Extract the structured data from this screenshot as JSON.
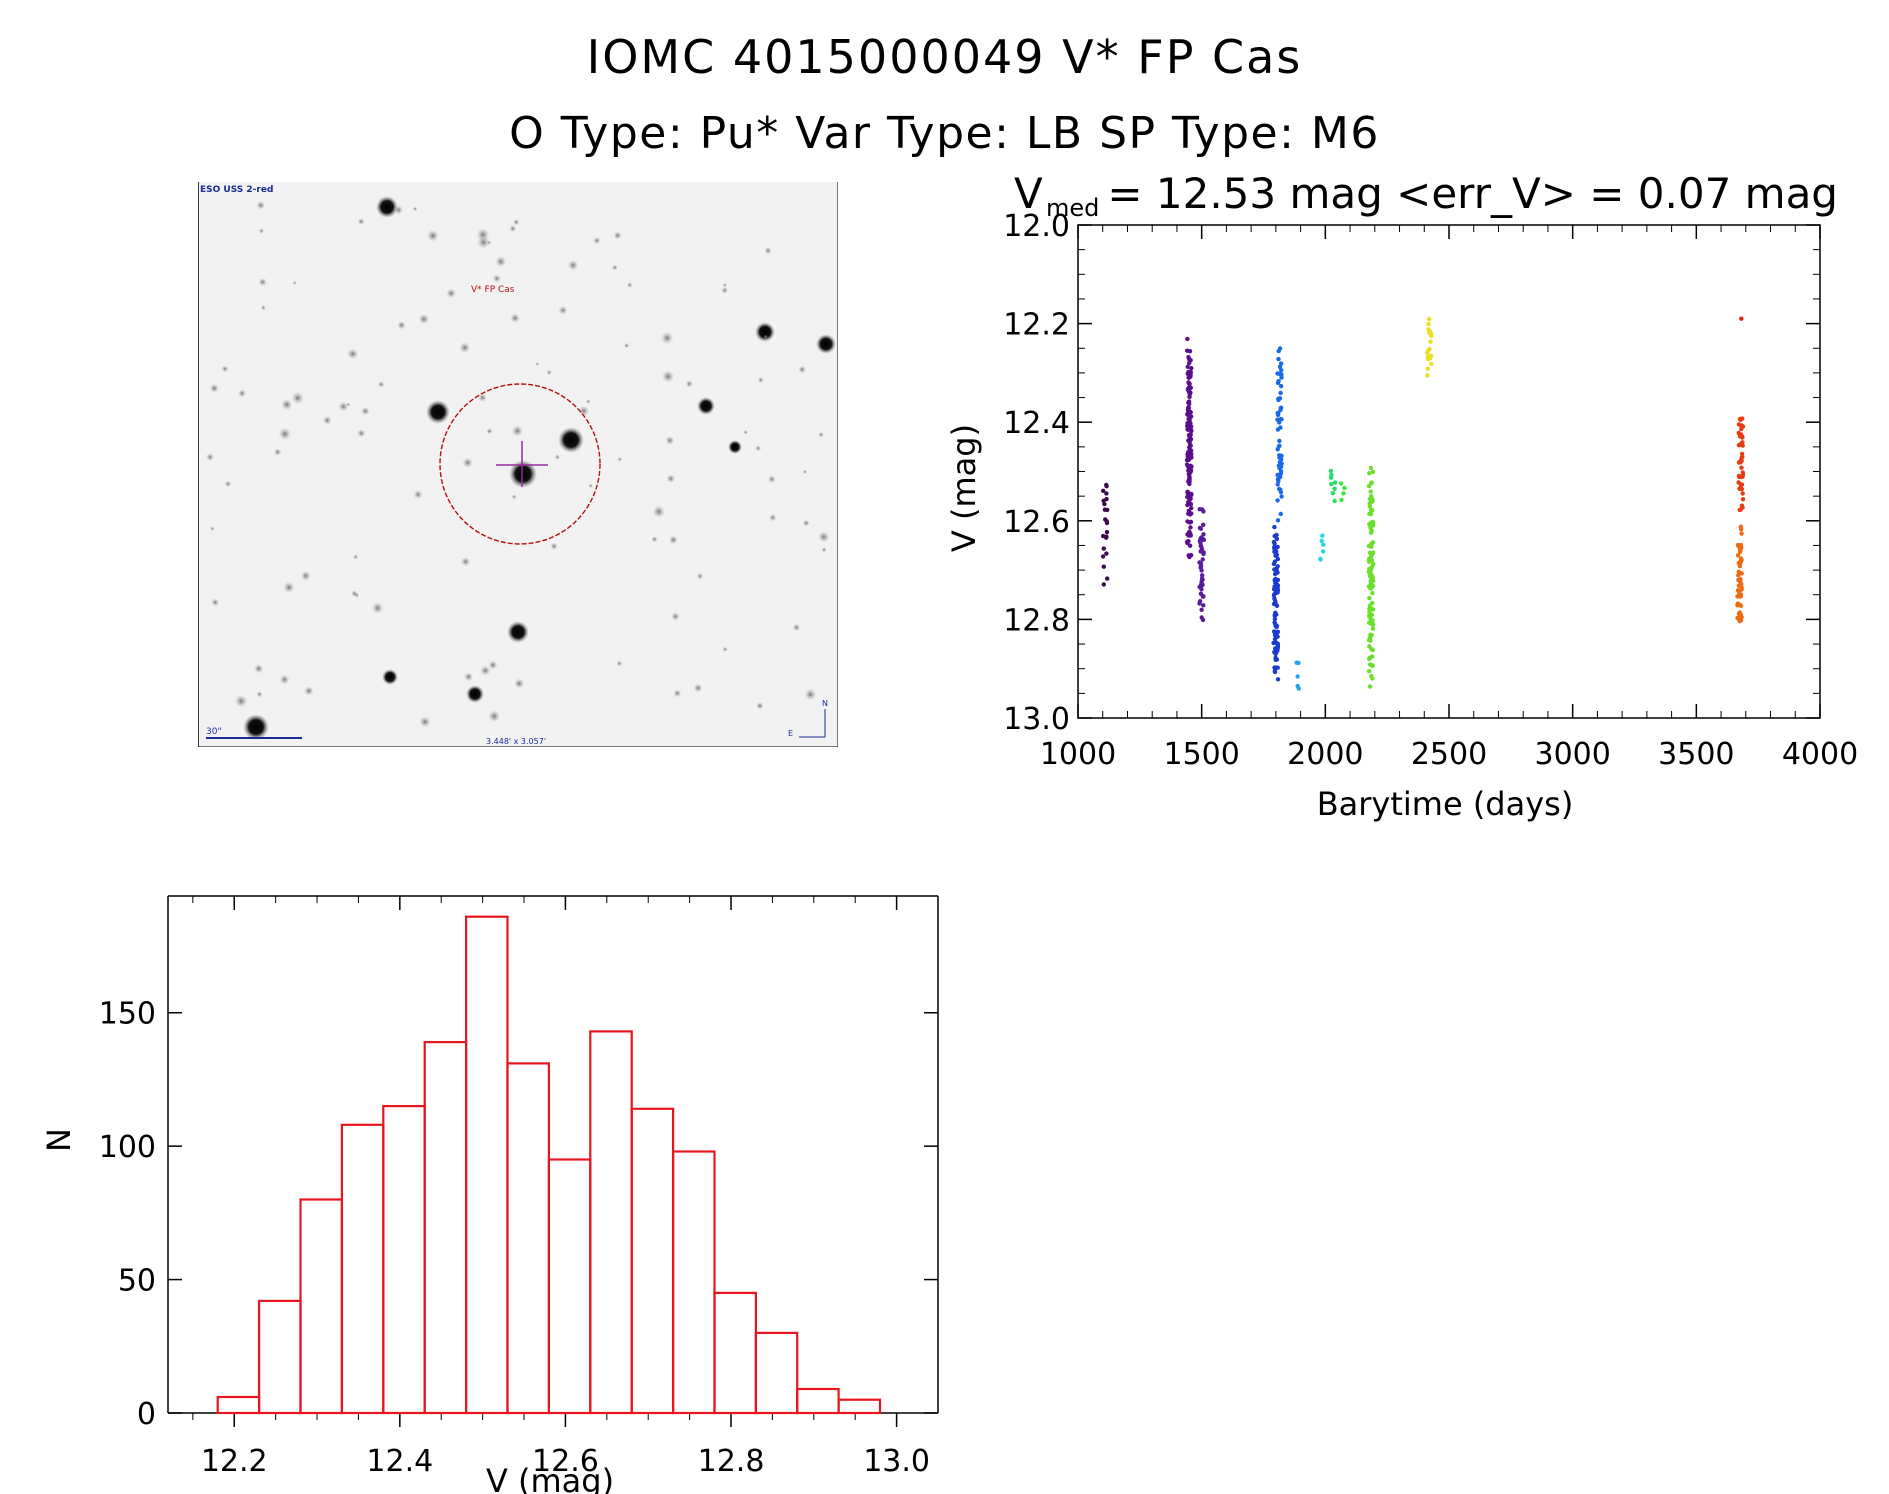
{
  "header": {
    "title": "IOMC 4015000049    V* FP Cas",
    "subtitle": "O Type: Pu*  Var Type: LB  SP Type: M6"
  },
  "image": {
    "survey_label": "ESO USS 2-red",
    "object_label": "V* FP Cas",
    "scale_label": "30\"",
    "size_label": "3.448' x 3.057'",
    "north_label": "N",
    "east_label": "E"
  },
  "chart_data": [
    {
      "type": "scatter",
      "title_prefix": "V",
      "title_subscript": "med",
      "title_rest": " = 12.53 mag <err_V> = 0.07 mag",
      "xlabel": "Barytime (days)",
      "ylabel": "V (mag)",
      "xlim": [
        1000,
        4000
      ],
      "ylim": [
        13.0,
        12.0
      ],
      "y_inverted": true,
      "xticks": [
        1000,
        1500,
        2000,
        2500,
        3000,
        3500,
        4000
      ],
      "yticks": [
        12.0,
        12.2,
        12.4,
        12.6,
        12.8,
        13.0
      ],
      "series": [
        {
          "color": "#3a0a4a",
          "x": 1110,
          "ymin": 12.47,
          "ymax": 12.74,
          "n": 22
        },
        {
          "color": "#5a0d8c",
          "x": 1450,
          "ymin": 12.22,
          "ymax": 12.69,
          "n": 140
        },
        {
          "color": "#5a1aa0",
          "x": 1500,
          "ymin": 12.55,
          "ymax": 12.82,
          "n": 45
        },
        {
          "color": "#1a3ad0",
          "x": 1800,
          "ymin": 12.6,
          "ymax": 12.95,
          "n": 90
        },
        {
          "color": "#1a6ae8",
          "x": 1815,
          "ymin": 12.23,
          "ymax": 12.62,
          "n": 60
        },
        {
          "color": "#22a6e8",
          "x": 1890,
          "ymin": 12.87,
          "ymax": 12.96,
          "n": 5
        },
        {
          "color": "#22d8e8",
          "x": 1985,
          "ymin": 12.62,
          "ymax": 12.69,
          "n": 6
        },
        {
          "color": "#22e06a",
          "x": 2030,
          "ymin": 12.49,
          "ymax": 12.56,
          "n": 8
        },
        {
          "color": "#3ae83a",
          "x": 2070,
          "ymin": 12.52,
          "ymax": 12.56,
          "n": 4
        },
        {
          "color": "#6ae02a",
          "x": 2185,
          "ymin": 12.45,
          "ymax": 12.96,
          "n": 110
        },
        {
          "color": "#e8e020",
          "x": 2420,
          "ymin": 12.18,
          "ymax": 12.31,
          "n": 20
        },
        {
          "color": "#e83a10",
          "x": 3680,
          "ymin": 12.35,
          "ymax": 12.6,
          "n": 45
        },
        {
          "color": "#f06a10",
          "x": 3675,
          "ymin": 12.6,
          "ymax": 12.84,
          "n": 50
        },
        {
          "color": "#e82010",
          "x": 3680,
          "ymin": 12.19,
          "ymax": 12.19,
          "n": 1
        }
      ]
    },
    {
      "type": "bar",
      "xlabel": "V (mag)",
      "ylabel": "N",
      "xlim": [
        12.12,
        13.05
      ],
      "ylim": [
        0,
        190
      ],
      "xticks": [
        12.2,
        12.4,
        12.6,
        12.8,
        13.0
      ],
      "yticks": [
        0,
        50,
        100,
        150
      ],
      "bin_width": 0.05,
      "bin_starts": [
        12.18,
        12.23,
        12.28,
        12.33,
        12.38,
        12.43,
        12.48,
        12.53,
        12.58,
        12.63,
        12.68,
        12.73,
        12.78,
        12.83,
        12.88,
        12.93
      ],
      "values": [
        6,
        42,
        80,
        108,
        115,
        139,
        186,
        131,
        95,
        143,
        114,
        98,
        45,
        30,
        9,
        5
      ],
      "color": "#e8141e"
    }
  ]
}
